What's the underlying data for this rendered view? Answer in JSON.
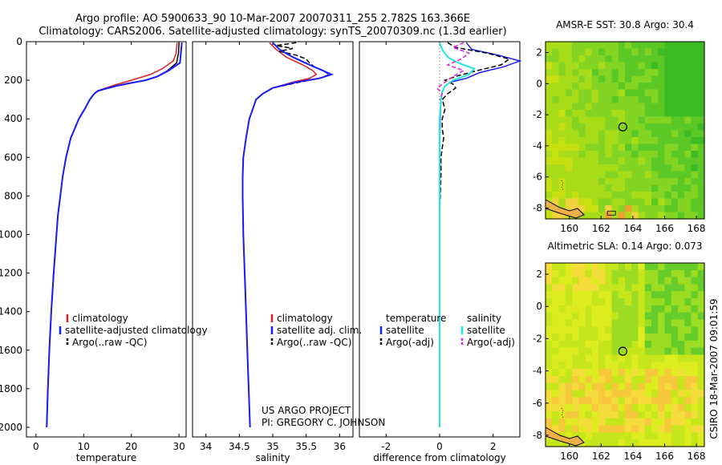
{
  "header": {
    "line1": "Argo profile: AO 5900633_90 10-Mar-2007 20070311_255 2.782S 163.366E",
    "line2": "Climatology: CARS2006. Satellite-adjusted climatology: synTS_20070309.nc (1.3d earlier)"
  },
  "side_text": "CSIRO 18-Mar-2007 09:01:59",
  "project_text": [
    "US ARGO PROJECT",
    "PI: GREGORY C. JOHNSON"
  ],
  "colors": {
    "climatology": "#e02020",
    "satellite": "#1a1aff",
    "argo": "#000000",
    "salinity_satellite": "#22e6e6",
    "salinity_argo": "#e020e0",
    "marker": "#000000"
  },
  "chart_data": [
    {
      "type": "line",
      "name": "temperature",
      "xlabel": "temperature",
      "ylabel": "",
      "xlim": [
        -2,
        31.5
      ],
      "ylim": [
        2050,
        0
      ],
      "xticks": [
        0,
        10,
        20,
        30
      ],
      "yticks": [
        0,
        200,
        400,
        600,
        800,
        1000,
        1200,
        1400,
        1600,
        1800,
        2000
      ],
      "legend": [
        "climatology",
        "satellite-adjusted climatology",
        "Argo(..raw -QC)"
      ],
      "series": [
        {
          "name": "climatology",
          "color": "climatology",
          "width": 1.5,
          "depth": [
            5,
            60,
            100,
            140,
            170,
            200,
            225,
            250,
            270,
            300,
            350,
            400,
            500,
            600,
            700,
            800,
            900,
            1000,
            1200,
            1400,
            1600,
            1800,
            2000
          ],
          "value": [
            29.6,
            29.4,
            28.8,
            26.5,
            24.0,
            20.0,
            16.5,
            13.5,
            12.2,
            11.3,
            10.2,
            9.0,
            7.3,
            6.3,
            5.6,
            5.1,
            4.6,
            4.3,
            3.7,
            3.2,
            2.8,
            2.5,
            2.25
          ]
        },
        {
          "name": "Argo(..raw -QC)",
          "color": "argo",
          "width": 1.5,
          "depth": [
            5,
            60,
            110,
            150,
            180,
            200,
            215,
            230,
            245,
            255,
            270,
            300,
            350,
            400,
            500,
            600,
            700,
            800,
            900,
            1000,
            1200,
            1400,
            1600,
            1800,
            2000
          ],
          "value": [
            30.0,
            29.9,
            29.5,
            27.6,
            25.5,
            23.0,
            19.5,
            16.5,
            14.4,
            13.0,
            12.2,
            11.3,
            10.2,
            9.0,
            7.3,
            6.3,
            5.6,
            5.1,
            4.6,
            4.3,
            3.7,
            3.2,
            2.8,
            2.5,
            2.25
          ]
        },
        {
          "name": "satellite-adjusted climatology",
          "color": "satellite",
          "width": 2,
          "depth": [
            5,
            60,
            110,
            150,
            180,
            200,
            215,
            230,
            245,
            255,
            270,
            300,
            350,
            400,
            500,
            600,
            700,
            800,
            900,
            1000,
            1200,
            1400,
            1600,
            1800,
            2000
          ],
          "value": [
            30.6,
            30.4,
            30.2,
            27.8,
            25.5,
            23.0,
            19.8,
            16.8,
            14.5,
            13.0,
            12.2,
            11.3,
            10.2,
            9.0,
            7.3,
            6.3,
            5.6,
            5.1,
            4.6,
            4.3,
            3.7,
            3.2,
            2.8,
            2.5,
            2.25
          ]
        }
      ]
    },
    {
      "type": "line",
      "name": "salinity",
      "xlabel": "salinity",
      "ylabel": "",
      "xlim": [
        33.8,
        36.2
      ],
      "ylim": [
        2050,
        0
      ],
      "xticks": [
        34,
        34.5,
        35,
        35.5,
        36
      ],
      "yticks": [],
      "legend": [
        "climatology",
        "satellite adj. clim.",
        "Argo(..raw -QC)"
      ],
      "series": [
        {
          "name": "climatology",
          "color": "climatology",
          "width": 1.5,
          "depth": [
            5,
            40,
            80,
            120,
            150,
            170,
            190,
            210,
            240,
            270,
            300,
            350,
            400,
            500,
            600,
            700,
            800,
            1000,
            1200,
            1400,
            1600,
            1800,
            2000
          ],
          "value": [
            34.95,
            35.05,
            35.2,
            35.45,
            35.6,
            35.65,
            35.55,
            35.3,
            35.0,
            34.85,
            34.75,
            34.7,
            34.65,
            34.6,
            34.56,
            34.55,
            34.55,
            34.56,
            34.58,
            34.6,
            34.62,
            34.64,
            34.66
          ]
        },
        {
          "name": "Argo(..raw -QC)",
          "color": "argo",
          "width": 1.5,
          "dash": "6,3",
          "depth": [
            5,
            20,
            35,
            50,
            70,
            90,
            110,
            130,
            150,
            170,
            190,
            210,
            240,
            270,
            300,
            350,
            400
          ],
          "value": [
            35.35,
            35.05,
            35.3,
            35.1,
            35.35,
            35.5,
            35.55,
            35.62,
            35.75,
            35.85,
            35.7,
            35.4,
            35.0,
            34.85,
            34.75,
            34.7,
            34.65
          ]
        },
        {
          "name": "satellite adj. clim.",
          "color": "satellite",
          "width": 2,
          "depth": [
            5,
            40,
            80,
            120,
            150,
            170,
            190,
            210,
            240,
            270,
            300,
            350,
            400,
            500,
            600,
            700,
            800,
            1000,
            1200,
            1400,
            1600,
            1800,
            2000
          ],
          "value": [
            35.0,
            35.1,
            35.3,
            35.55,
            35.75,
            35.88,
            35.7,
            35.35,
            35.0,
            34.85,
            34.75,
            34.7,
            34.65,
            34.6,
            34.56,
            34.55,
            34.55,
            34.56,
            34.58,
            34.6,
            34.62,
            34.64,
            34.66
          ]
        }
      ]
    },
    {
      "type": "line",
      "name": "difference from climatology",
      "xlabel": "difference from climatology",
      "ylabel": "",
      "xlim": [
        -3,
        3
      ],
      "ylim": [
        2050,
        0
      ],
      "xticks": [
        -2,
        0,
        2
      ],
      "yticks": [],
      "legend_groups": [
        {
          "title": "temperature",
          "entries": [
            "satellite",
            "Argo(-adj)"
          ]
        },
        {
          "title": "salinity",
          "entries": [
            "satellite",
            "Argo(-adj)"
          ]
        }
      ],
      "series": [
        {
          "name": "temperature satellite",
          "color": "satellite",
          "width": 1.5,
          "depth": [
            5,
            40,
            70,
            100,
            130,
            160,
            190,
            210,
            230,
            260,
            300,
            400,
            600,
            800,
            1000,
            1500,
            2000
          ],
          "value": [
            1.0,
            1.2,
            2.2,
            3.0,
            2.4,
            1.5,
            1.0,
            0.4,
            0.2,
            0.1,
            0.05,
            0.02,
            0.0,
            0.0,
            0.0,
            0.0,
            0.0
          ]
        },
        {
          "name": "temperature Argo(-adj)",
          "color": "argo",
          "width": 1.5,
          "dash": "6,3",
          "depth": [
            5,
            30,
            60,
            90,
            120,
            150,
            180,
            200,
            220,
            240,
            270,
            300,
            350,
            400,
            450,
            500,
            550,
            600,
            700,
            800,
            900,
            1000
          ],
          "value": [
            0.3,
            0.6,
            1.8,
            2.6,
            2.3,
            1.4,
            0.6,
            0.2,
            0.5,
            0.6,
            0.3,
            0.1,
            0.2,
            0.1,
            0.1,
            0.15,
            0.1,
            0.05,
            0.05,
            0.02,
            0.0,
            0.0
          ]
        },
        {
          "name": "salinity satellite",
          "color": "salinity_satellite",
          "width": 2,
          "depth": [
            5,
            40,
            80,
            110,
            140,
            170,
            200,
            230,
            260,
            300,
            400,
            600,
            800,
            1000,
            1500,
            2000
          ],
          "value": [
            0.0,
            0.1,
            0.3,
            0.7,
            1.3,
            1.1,
            0.5,
            0.2,
            0.1,
            0.05,
            0.0,
            0.0,
            0.0,
            0.0,
            0.0,
            0.0
          ]
        },
        {
          "name": "salinity Argo(-adj)",
          "color": "salinity_argo",
          "width": 1.5,
          "dash": "5,3",
          "depth": [
            5,
            30,
            60,
            90,
            120,
            150,
            180,
            210,
            240,
            270,
            300
          ],
          "value": [
            0.9,
            0.5,
            1.1,
            0.8,
            0.3,
            0.9,
            0.5,
            0.2,
            -0.1,
            0.1,
            0.0
          ]
        }
      ]
    },
    {
      "type": "heatmap",
      "name": "sst-map",
      "title": "AMSR-E SST: 30.8 Argo: 30.4",
      "xlim": [
        158.5,
        168.5
      ],
      "ylim": [
        -8.7,
        2.7
      ],
      "xticks": [
        160,
        162,
        164,
        166,
        168
      ],
      "yticks": [
        2,
        0,
        -2,
        -4,
        -6,
        -8
      ],
      "marker": {
        "lon": 163.366,
        "lat": -2.782
      },
      "palette": [
        "#c8e010",
        "#a8dc18",
        "#84d424",
        "#5cc826",
        "#3cbc22"
      ],
      "hot_palette": [
        "#f2d23c",
        "#f0a030"
      ],
      "seed": 11
    },
    {
      "type": "heatmap",
      "name": "sla-map",
      "title": "Altimetric SLA: 0.14 Argo: 0.073",
      "xlim": [
        158.5,
        168.5
      ],
      "ylim": [
        -8.7,
        2.7
      ],
      "xticks": [
        160,
        162,
        164,
        166,
        168
      ],
      "yticks": [
        2,
        0,
        -2,
        -4,
        -6,
        -8
      ],
      "marker": {
        "lon": 163.366,
        "lat": -2.782
      },
      "palette": [
        "#dcec1e",
        "#c4e61a",
        "#9cdc22",
        "#66cc2a",
        "#f4dc3a",
        "#f6c83c"
      ],
      "seed": 5
    }
  ]
}
